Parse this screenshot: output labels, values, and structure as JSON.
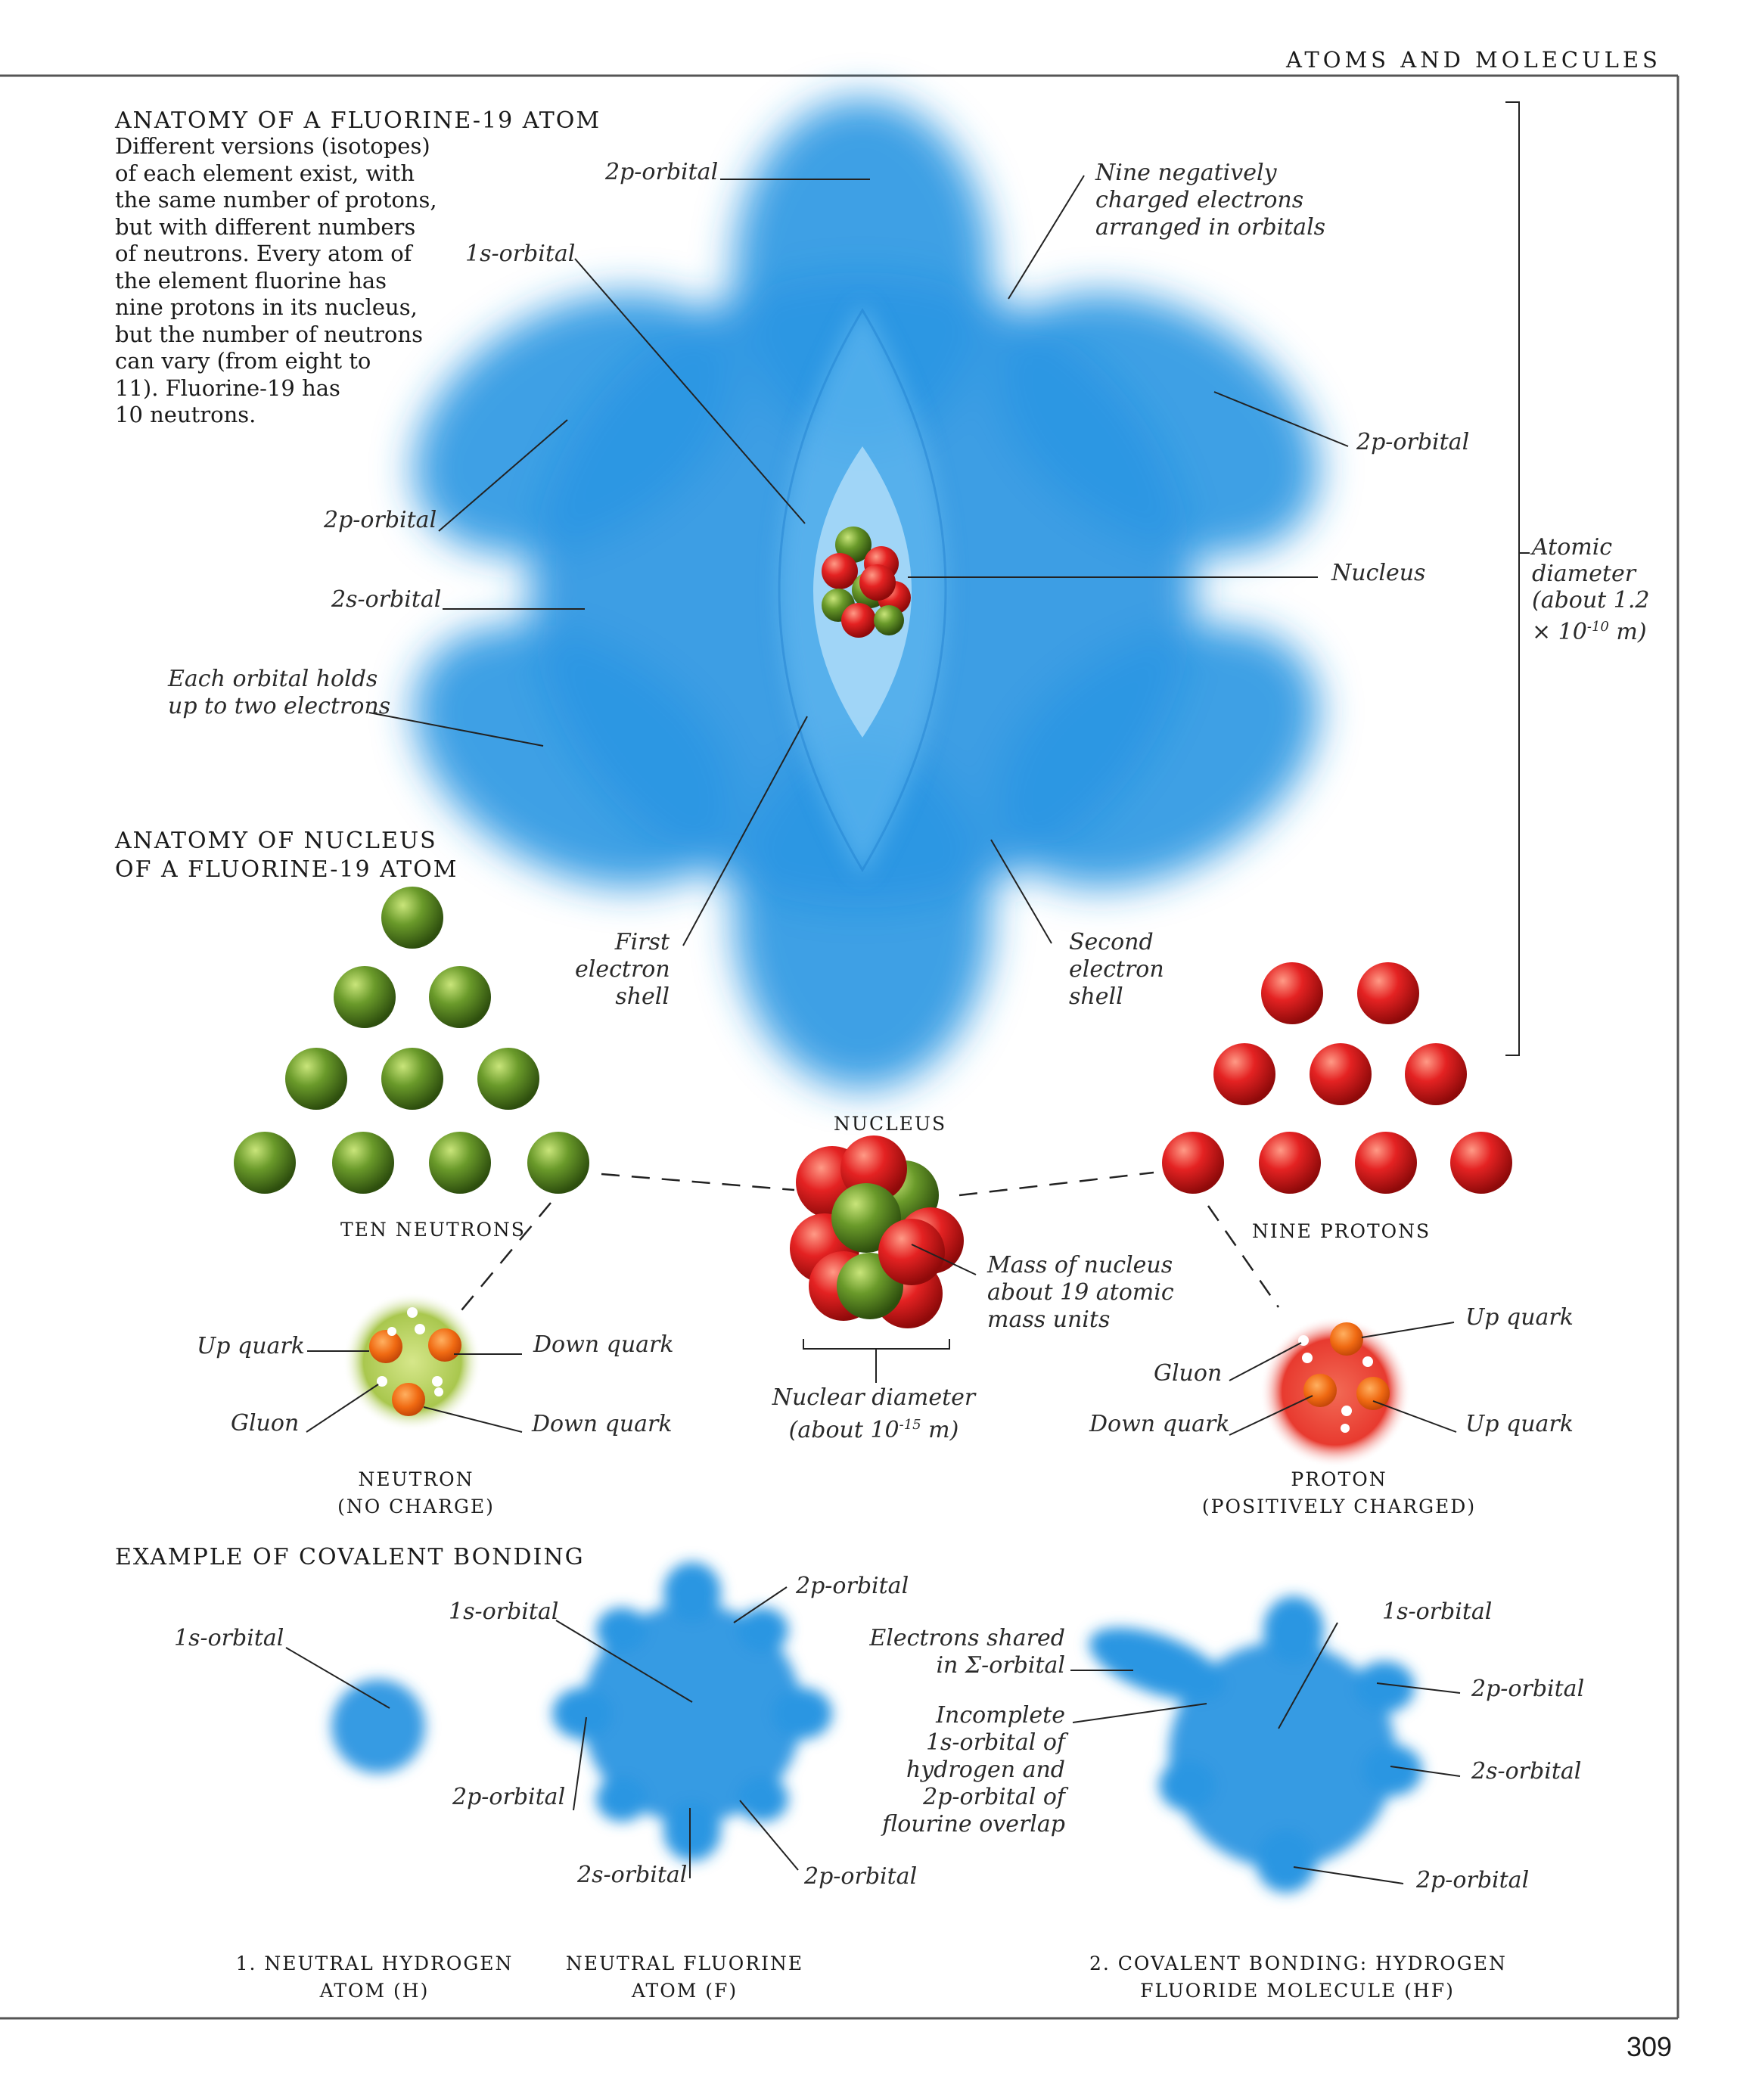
{
  "page": {
    "running_head": "ATOMS AND MOLECULES",
    "page_number": "309"
  },
  "atom": {
    "title": "ANATOMY OF A FLUORINE-19 ATOM",
    "intro": [
      "Different versions (isotopes)",
      "of each element exist, with",
      "the same number of protons,",
      "but with different numbers",
      "of neutrons. Every atom of",
      "the element fluorine has",
      "nine protons in its nucleus,",
      "but the number of neutrons",
      "can vary (from eight to",
      "11). Fluorine-19 has",
      "10 neutrons."
    ],
    "labels": {
      "orbital_2p_top": "2p-orbital",
      "orbital_1s": "1s-orbital",
      "electrons": [
        "Nine negatively",
        "charged electrons",
        "arranged in orbitals"
      ],
      "orbital_2p_right": "2p-orbital",
      "nucleus": "Nucleus",
      "orbital_2p_left": "2p-orbital",
      "orbital_2s": "2s-orbital",
      "each_orbital": [
        "Each orbital holds",
        "up to two electrons"
      ],
      "first_shell": [
        "First",
        "electron",
        "shell"
      ],
      "second_shell": [
        "Second",
        "electron",
        "shell"
      ],
      "diameter": [
        "Atomic",
        "diameter",
        "(about 1.2",
        "× 10"
      ],
      "diameter_exp": "-10",
      "diameter_unit": " m)"
    }
  },
  "nucleus_section": {
    "title": [
      "ANATOMY OF NUCLEUS",
      "OF A FLUORINE-19 ATOM"
    ],
    "neutrons_caption": "TEN NEUTRONS",
    "protons_caption": "NINE PROTONS",
    "nucleus_caption": "NUCLEUS",
    "mass": [
      "Mass of  nucleus",
      "about 19 atomic",
      "mass units"
    ],
    "nuclear_diameter": [
      "Nuclear diameter",
      "(about 10"
    ],
    "nuclear_exp": "-15",
    "nuclear_unit": " m)",
    "neutron": {
      "up_quark": "Up quark",
      "down_quark_1": "Down quark",
      "gluon": "Gluon",
      "down_quark_2": "Down quark",
      "caption": [
        "NEUTRON",
        "(NO CHARGE)"
      ]
    },
    "proton": {
      "up_quark_1": "Up quark",
      "gluon": "Gluon",
      "down_quark": "Down quark",
      "up_quark_2": "Up quark",
      "caption": [
        "PROTON",
        "(POSITIVELY CHARGED)"
      ]
    }
  },
  "bonding": {
    "title": "EXAMPLE OF COVALENT BONDING",
    "hydrogen": {
      "orbital_1s": "1s-orbital",
      "caption": [
        "1. NEUTRAL HYDROGEN",
        "ATOM (H)"
      ]
    },
    "fluorine": {
      "orbital_1s": "1s-orbital",
      "orbital_2p_top": "2p-orbital",
      "orbital_2p_left": "2p-orbital",
      "orbital_2s": "2s-orbital",
      "orbital_2p_bottom": "2p-orbital",
      "caption": [
        "NEUTRAL FLUORINE",
        "ATOM (F)"
      ]
    },
    "molecule": {
      "shared": [
        "Electrons shared",
        "in Σ-orbital"
      ],
      "incomplete": [
        "Incomplete",
        "1s-orbital of",
        "hydrogen and",
        "2p-orbital of",
        "flourine overlap"
      ],
      "orbital_1s": "1s-orbital",
      "orbital_2p_1": "2p-orbital",
      "orbital_2s": "2s-orbital",
      "orbital_2p_2": "2p-orbital",
      "caption": [
        "2. COVALENT BONDING: HYDROGEN",
        "FLUORIDE MOLECULE (HF)"
      ]
    }
  },
  "colors": {
    "orbital_blue": "#2a96e2",
    "neutron_green": "#5d8f25",
    "proton_red": "#e01e1e",
    "rule": "#555555"
  }
}
